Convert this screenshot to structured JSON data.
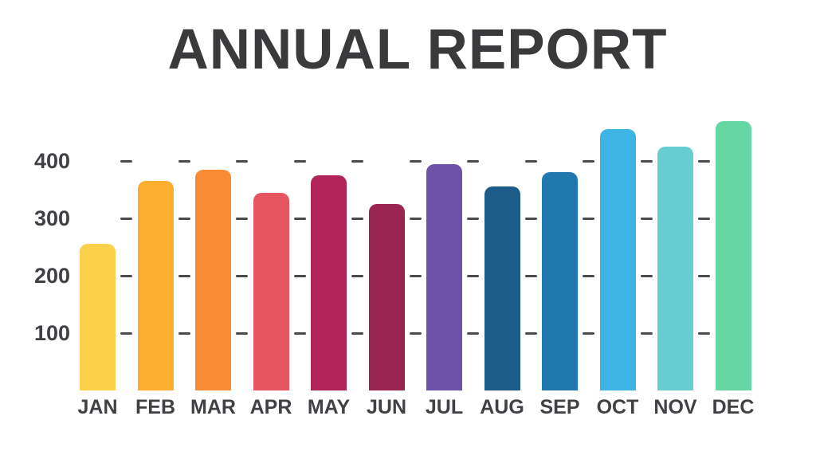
{
  "title": "ANNUAL REPORT",
  "text_color": "#3a3a3c",
  "axis_label_color": "#414145",
  "gridline_color": "#4b4b4f",
  "background_color": "#ffffff",
  "chart_data": {
    "type": "bar",
    "title": "ANNUAL REPORT",
    "categories": [
      "JAN",
      "FEB",
      "MAR",
      "APR",
      "MAY",
      "JUN",
      "JUL",
      "AUG",
      "SEP",
      "OCT",
      "NOV",
      "DEC"
    ],
    "values": [
      255,
      365,
      385,
      345,
      375,
      325,
      395,
      355,
      380,
      455,
      425,
      470
    ],
    "bar_colors": [
      "#fbd14b",
      "#fcae2e",
      "#f88b33",
      "#e75561",
      "#b02459",
      "#9b2453",
      "#6c52a8",
      "#1d5c88",
      "#2178ae",
      "#3eb4e5",
      "#66cdd3",
      "#66d6a3"
    ],
    "xlabel": "",
    "ylabel": "",
    "yticks": [
      100,
      200,
      300,
      400
    ],
    "ylim": [
      0,
      500
    ],
    "grid": "dashed segments between bar columns, horizontal, at each y tick",
    "legend_position": "none"
  }
}
